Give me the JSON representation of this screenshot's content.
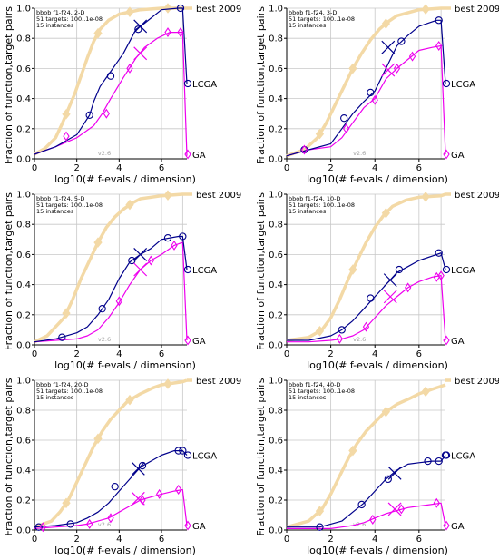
{
  "colors": {
    "best": "#f3d9a6",
    "lcga": "#00008b",
    "ga": "#ee00ee",
    "grid": "#c8c8c8",
    "axis": "#000000"
  },
  "common": {
    "ylabel": "Fraction of function,target pairs",
    "xlabel": "log10(# f-evals / dimension)",
    "xticks": [
      "0",
      "2",
      "4",
      "6"
    ],
    "yticks": [
      "0.0",
      "0.2",
      "0.4",
      "0.6",
      "0.8",
      "1.0"
    ],
    "xlim": [
      0,
      7.2
    ],
    "ylim": [
      0,
      1
    ],
    "info_line2": "51 targets: 100..1e-08",
    "info_line3": "15 instances",
    "version": "v2.6",
    "series_labels": {
      "best": "best 2009",
      "lcga": "LCGA",
      "ga": "GA"
    },
    "legend_y": {
      "best": 1.0,
      "lcga": 0.5,
      "ga": 0.03
    }
  },
  "chart_data": [
    {
      "type": "line",
      "title": "bbob f1-f24, 2-D",
      "series": [
        {
          "name": "best 2009",
          "x": [
            0,
            0.5,
            1.0,
            1.3,
            1.6,
            1.9,
            2.2,
            2.5,
            2.8,
            3.1,
            3.5,
            4.0,
            5.0,
            6.0,
            6.9,
            7.2
          ],
          "y": [
            0.03,
            0.07,
            0.14,
            0.23,
            0.33,
            0.43,
            0.55,
            0.67,
            0.78,
            0.86,
            0.92,
            0.96,
            0.99,
            1.0,
            1.0,
            1.0
          ]
        },
        {
          "name": "LCGA",
          "x": [
            0,
            1.0,
            2.0,
            2.6,
            2.8,
            3.1,
            3.5,
            4.2,
            4.8,
            5.2,
            6.0,
            6.8,
            7.0,
            7.2
          ],
          "y": [
            0.03,
            0.08,
            0.16,
            0.29,
            0.38,
            0.48,
            0.56,
            0.7,
            0.86,
            0.9,
            0.99,
            1.0,
            1.0,
            0.5
          ]
        },
        {
          "name": "GA",
          "x": [
            0,
            1.0,
            2.0,
            2.8,
            3.2,
            3.6,
            4.2,
            4.8,
            5.2,
            5.8,
            6.4,
            7.0,
            7.2
          ],
          "y": [
            0.03,
            0.08,
            0.14,
            0.22,
            0.3,
            0.4,
            0.54,
            0.67,
            0.74,
            0.8,
            0.84,
            0.84,
            0.02
          ]
        }
      ],
      "lcga_markers": [
        [
          2.6,
          0.29
        ],
        [
          3.6,
          0.55
        ],
        [
          4.9,
          0.86
        ],
        [
          6.9,
          1.0
        ]
      ],
      "ga_markers": [
        [
          1.5,
          0.15
        ],
        [
          3.4,
          0.3
        ],
        [
          4.5,
          0.6
        ],
        [
          6.3,
          0.84
        ],
        [
          6.9,
          0.84
        ]
      ],
      "lcga_cross": [
        5.0,
        0.88
      ],
      "ga_cross": [
        5.0,
        0.7
      ],
      "ends": {
        "lcga": 0.5,
        "ga": 0.02
      },
      "version_x": 3.3
    },
    {
      "type": "line",
      "title": "bbob f1-f24, 3-D",
      "series": [
        {
          "name": "best 2009",
          "x": [
            0,
            0.8,
            1.4,
            1.8,
            2.2,
            2.6,
            3.0,
            3.4,
            3.8,
            4.2,
            4.6,
            5.0,
            6.0,
            7.0,
            7.2
          ],
          "y": [
            0.02,
            0.06,
            0.14,
            0.24,
            0.36,
            0.48,
            0.6,
            0.7,
            0.79,
            0.86,
            0.91,
            0.95,
            0.99,
            1.0,
            1.0
          ]
        },
        {
          "name": "LCGA",
          "x": [
            0,
            1.0,
            2.0,
            2.5,
            3.0,
            3.5,
            4.0,
            4.5,
            5.0,
            5.5,
            6.0,
            6.8,
            7.0,
            7.2
          ],
          "y": [
            0.02,
            0.06,
            0.1,
            0.2,
            0.3,
            0.38,
            0.45,
            0.6,
            0.75,
            0.82,
            0.88,
            0.92,
            0.92,
            0.5
          ]
        },
        {
          "name": "GA",
          "x": [
            0,
            1.0,
            2.0,
            2.5,
            3.0,
            3.5,
            4.0,
            4.5,
            5.0,
            5.5,
            6.0,
            6.6,
            7.0,
            7.2
          ],
          "y": [
            0.02,
            0.06,
            0.08,
            0.14,
            0.24,
            0.34,
            0.4,
            0.53,
            0.6,
            0.66,
            0.72,
            0.74,
            0.75,
            0.03
          ]
        }
      ],
      "lcga_markers": [
        [
          0.8,
          0.06
        ],
        [
          2.6,
          0.27
        ],
        [
          3.8,
          0.44
        ],
        [
          5.2,
          0.78
        ],
        [
          6.9,
          0.92
        ]
      ],
      "ga_markers": [
        [
          0.8,
          0.06
        ],
        [
          2.7,
          0.2
        ],
        [
          4.0,
          0.39
        ],
        [
          5.0,
          0.6
        ],
        [
          5.7,
          0.68
        ],
        [
          6.9,
          0.75
        ]
      ],
      "lcga_cross": [
        4.6,
        0.74
      ],
      "ga_cross": [
        4.6,
        0.59
      ],
      "ends": {
        "lcga": 0.5,
        "ga": 0.03
      },
      "version_x": 3.3
    },
    {
      "type": "line",
      "title": "bbob f1-f24, 5-D",
      "series": [
        {
          "name": "best 2009",
          "x": [
            0,
            0.6,
            1.0,
            1.4,
            1.8,
            2.2,
            2.6,
            3.0,
            3.4,
            3.8,
            4.2,
            4.6,
            5.0,
            6.0,
            7.0,
            7.2
          ],
          "y": [
            0.02,
            0.06,
            0.12,
            0.18,
            0.3,
            0.44,
            0.56,
            0.68,
            0.78,
            0.85,
            0.9,
            0.94,
            0.97,
            0.99,
            1.0,
            1.0
          ]
        },
        {
          "name": "LCGA",
          "x": [
            0,
            1.0,
            2.0,
            2.5,
            3.0,
            3.5,
            4.0,
            4.5,
            5.0,
            5.5,
            6.0,
            6.8,
            7.0,
            7.2
          ],
          "y": [
            0.02,
            0.04,
            0.08,
            0.12,
            0.2,
            0.3,
            0.44,
            0.55,
            0.6,
            0.64,
            0.7,
            0.72,
            0.72,
            0.5
          ]
        },
        {
          "name": "GA",
          "x": [
            0,
            1.0,
            2.0,
            2.5,
            3.0,
            3.5,
            4.0,
            4.5,
            5.0,
            5.5,
            6.0,
            6.6,
            7.0,
            7.2
          ],
          "y": [
            0.02,
            0.03,
            0.04,
            0.06,
            0.1,
            0.18,
            0.28,
            0.4,
            0.5,
            0.56,
            0.6,
            0.66,
            0.68,
            0.03
          ]
        }
      ],
      "lcga_markers": [
        [
          1.3,
          0.05
        ],
        [
          3.2,
          0.24
        ],
        [
          4.6,
          0.56
        ],
        [
          6.3,
          0.71
        ],
        [
          7.0,
          0.72
        ]
      ],
      "ga_markers": [
        [
          4.0,
          0.29
        ],
        [
          5.5,
          0.56
        ],
        [
          6.6,
          0.66
        ]
      ],
      "lcga_cross": [
        5.0,
        0.6
      ],
      "ga_cross": [
        5.0,
        0.5
      ],
      "ends": {
        "lcga": 0.5,
        "ga": 0.03
      },
      "version_x": 3.3
    },
    {
      "type": "line",
      "title": "bbob f1-f24, 10-D",
      "series": [
        {
          "name": "best 2009",
          "x": [
            0,
            1.0,
            1.6,
            2.0,
            2.4,
            2.8,
            3.2,
            3.6,
            4.0,
            4.4,
            4.8,
            5.4,
            6.0,
            7.0,
            7.2
          ],
          "y": [
            0.03,
            0.05,
            0.1,
            0.18,
            0.3,
            0.44,
            0.56,
            0.68,
            0.78,
            0.86,
            0.92,
            0.96,
            0.98,
            0.99,
            1.0
          ]
        },
        {
          "name": "LCGA",
          "x": [
            0,
            1.0,
            2.0,
            2.5,
            3.0,
            3.5,
            4.0,
            4.5,
            5.0,
            5.5,
            6.0,
            6.8,
            7.0,
            7.2
          ],
          "y": [
            0.03,
            0.03,
            0.06,
            0.1,
            0.16,
            0.24,
            0.32,
            0.4,
            0.48,
            0.52,
            0.56,
            0.6,
            0.61,
            0.5
          ]
        },
        {
          "name": "GA",
          "x": [
            0,
            1.0,
            2.0,
            2.5,
            3.0,
            3.5,
            4.0,
            4.5,
            5.0,
            5.5,
            6.0,
            6.6,
            7.0,
            7.2
          ],
          "y": [
            0.02,
            0.02,
            0.03,
            0.04,
            0.06,
            0.1,
            0.18,
            0.26,
            0.32,
            0.38,
            0.42,
            0.45,
            0.46,
            0.03
          ]
        }
      ],
      "lcga_markers": [
        [
          2.5,
          0.1
        ],
        [
          3.8,
          0.31
        ],
        [
          5.1,
          0.5
        ],
        [
          6.9,
          0.61
        ]
      ],
      "ga_markers": [
        [
          2.4,
          0.04
        ],
        [
          3.6,
          0.12
        ],
        [
          5.5,
          0.38
        ],
        [
          6.8,
          0.45
        ],
        [
          7.0,
          0.46
        ]
      ],
      "lcga_cross": [
        4.7,
        0.43
      ],
      "ga_cross": [
        4.7,
        0.32
      ],
      "ends": {
        "lcga": 0.5,
        "ga": 0.03
      },
      "version_x": 3.3
    },
    {
      "type": "line",
      "title": "bbob f1-f24, 20-D",
      "series": [
        {
          "name": "best 2009",
          "x": [
            0,
            0.8,
            1.2,
            1.6,
            2.0,
            2.4,
            2.8,
            3.2,
            3.6,
            4.0,
            4.4,
            5.0,
            5.6,
            6.0,
            7.0,
            7.2
          ],
          "y": [
            0.02,
            0.06,
            0.12,
            0.2,
            0.32,
            0.44,
            0.56,
            0.66,
            0.74,
            0.8,
            0.86,
            0.91,
            0.95,
            0.97,
            0.99,
            1.0
          ]
        },
        {
          "name": "LCGA",
          "x": [
            0,
            1.0,
            2.0,
            2.5,
            3.0,
            3.5,
            4.0,
            4.5,
            5.0,
            5.5,
            6.0,
            6.6,
            7.0,
            7.2
          ],
          "y": [
            0.02,
            0.03,
            0.05,
            0.08,
            0.12,
            0.18,
            0.26,
            0.34,
            0.42,
            0.46,
            0.5,
            0.53,
            0.53,
            0.5
          ]
        },
        {
          "name": "GA",
          "x": [
            0,
            1.0,
            2.0,
            2.5,
            3.0,
            3.5,
            4.0,
            4.5,
            5.0,
            5.5,
            6.0,
            6.6,
            7.0,
            7.2
          ],
          "y": [
            0.01,
            0.02,
            0.03,
            0.04,
            0.06,
            0.08,
            0.12,
            0.16,
            0.2,
            0.22,
            0.24,
            0.26,
            0.27,
            0.03
          ]
        }
      ],
      "lcga_markers": [
        [
          0.2,
          0.02
        ],
        [
          1.7,
          0.04
        ],
        [
          3.8,
          0.29
        ],
        [
          5.1,
          0.43
        ],
        [
          6.8,
          0.53
        ],
        [
          7.0,
          0.53
        ]
      ],
      "ga_markers": [
        [
          0.4,
          0.02
        ],
        [
          2.6,
          0.04
        ],
        [
          3.6,
          0.08
        ],
        [
          5.1,
          0.2
        ],
        [
          5.9,
          0.24
        ],
        [
          6.8,
          0.27
        ]
      ],
      "lcga_cross": [
        4.9,
        0.41
      ],
      "ga_cross": [
        4.9,
        0.21
      ],
      "ends": {
        "lcga": 0.5,
        "ga": 0.03
      },
      "version_x": 3.3
    },
    {
      "type": "line",
      "title": "bbob f1-f24, 40-D",
      "series": [
        {
          "name": "best 2009",
          "x": [
            0,
            1.0,
            1.6,
            2.0,
            2.4,
            2.8,
            3.2,
            3.6,
            4.0,
            4.4,
            5.0,
            5.6,
            6.0,
            6.6,
            7.0,
            7.2
          ],
          "y": [
            0.02,
            0.06,
            0.14,
            0.24,
            0.36,
            0.48,
            0.58,
            0.66,
            0.72,
            0.78,
            0.84,
            0.88,
            0.91,
            0.94,
            0.96,
            0.97
          ]
        },
        {
          "name": "LCGA",
          "x": [
            0,
            1.0,
            1.5,
            2.0,
            2.5,
            3.0,
            3.5,
            4.0,
            4.5,
            5.0,
            5.5,
            6.0,
            6.6,
            7.0,
            7.2
          ],
          "y": [
            0.02,
            0.02,
            0.02,
            0.04,
            0.06,
            0.12,
            0.18,
            0.26,
            0.34,
            0.4,
            0.44,
            0.45,
            0.46,
            0.46,
            0.5
          ]
        },
        {
          "name": "GA",
          "x": [
            0,
            1.0,
            2.0,
            2.5,
            3.0,
            3.5,
            4.0,
            4.5,
            5.0,
            5.5,
            6.0,
            6.5,
            7.0,
            7.2
          ],
          "y": [
            0.01,
            0.01,
            0.01,
            0.02,
            0.03,
            0.05,
            0.08,
            0.11,
            0.13,
            0.15,
            0.16,
            0.17,
            0.18,
            0.03
          ]
        }
      ],
      "lcga_markers": [
        [
          1.5,
          0.02
        ],
        [
          3.4,
          0.17
        ],
        [
          4.6,
          0.34
        ],
        [
          6.4,
          0.46
        ],
        [
          6.9,
          0.46
        ],
        [
          7.2,
          0.5
        ]
      ],
      "ga_markers": [
        [
          3.9,
          0.07
        ],
        [
          5.2,
          0.14
        ],
        [
          6.8,
          0.18
        ]
      ],
      "lcga_cross": [
        4.9,
        0.38
      ],
      "ga_cross": [
        4.9,
        0.14
      ],
      "ends": {
        "lcga": 0.5,
        "ga": 0.03
      },
      "version_x": 3.3
    }
  ]
}
